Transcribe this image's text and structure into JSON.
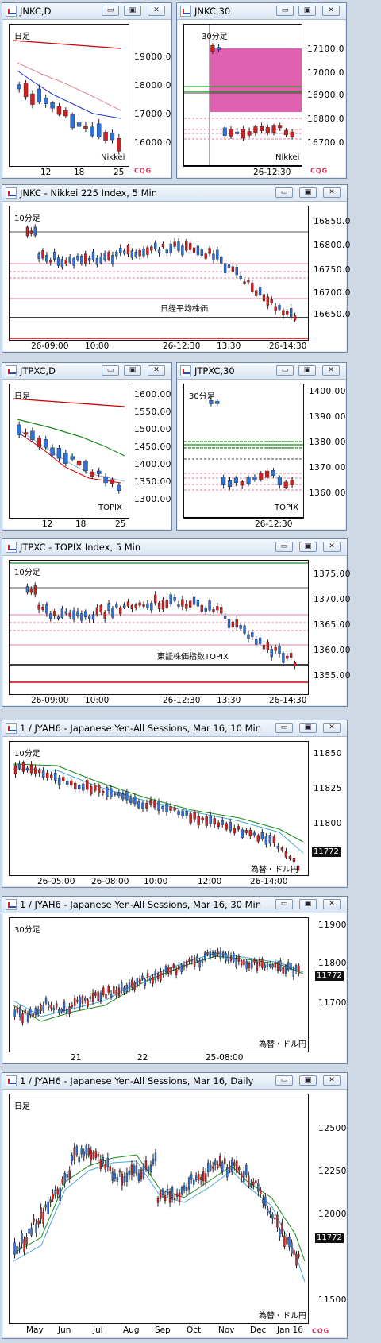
{
  "windows": [
    {
      "id": "w1",
      "title": "JNKC,D",
      "label": "日足",
      "label_color": "#1020c0",
      "tag": "Nikkei",
      "tag_color": "#1020c0",
      "yticks": [
        "19000.0",
        "18000.0",
        "17000.0",
        "16000.0"
      ],
      "xticks": [
        "12",
        "18",
        "25"
      ],
      "logo": "CQG"
    },
    {
      "id": "w2",
      "title": "JNKC,30",
      "label": "30分足",
      "label_color": "#1020c0",
      "tag": "Nikkei",
      "tag_color": "#1020c0",
      "yticks": [
        "17100.0",
        "17000.0",
        "16900.0",
        "16800.0",
        "16700.0"
      ],
      "xticks": [
        "26-12:30"
      ],
      "logo": "CQG"
    },
    {
      "id": "w3",
      "title": "JNKC - Nikkei 225 Index, 5 Min",
      "label": "10分足",
      "label_color": "#1020c0",
      "tag": "日経平均株価",
      "tag_color": "#1020c0",
      "yticks": [
        "16850.0",
        "16800.0",
        "16750.0",
        "16700.0",
        "16650.0"
      ],
      "xticks": [
        "26-09:00",
        "10:00",
        "26-12:30",
        "13:30",
        "26-14:30"
      ]
    },
    {
      "id": "w4",
      "title": "JTPXC,D",
      "label": "日足",
      "label_color": "#d01010",
      "tag": "TOPIX",
      "tag_color": "#d01010",
      "yticks": [
        "1600.00",
        "1550.00",
        "1500.00",
        "1450.00",
        "1400.00",
        "1350.00",
        "1300.00"
      ],
      "xticks": [
        "12",
        "18",
        "25"
      ]
    },
    {
      "id": "w5",
      "title": "JTPXC,30",
      "label": "30分足",
      "label_color": "#d01010",
      "tag": "TOPIX",
      "tag_color": "#d01010",
      "yticks": [
        "1400.00",
        "1390.00",
        "1380.00",
        "1370.00",
        "1360.00"
      ],
      "xticks": [
        "26-12:30"
      ]
    },
    {
      "id": "w6",
      "title": "JTPXC - TOPIX Index, 5 Min",
      "label": "10分足",
      "label_color": "#d01010",
      "tag": "東証株価指数TOPIX",
      "tag_color": "#d01010",
      "yticks": [
        "1375.00",
        "1370.00",
        "1365.00",
        "1360.00",
        "1355.00"
      ],
      "xticks": [
        "26-09:00",
        "10:00",
        "26-12:30",
        "13:30",
        "26-14:30"
      ]
    },
    {
      "id": "w7",
      "title": "1 / JYAH6 - Japanese Yen-All Sessions, Mar 16, 10 Min",
      "label": "10分足",
      "label_color": "#108010",
      "tag": "為替・ドル円",
      "tag_color": "#108010",
      "yticks": [
        "11850",
        "11825",
        "11800",
        "11772"
      ],
      "xticks": [
        "26-05:00",
        "26-08:00",
        "10:00",
        "12:00",
        "26-14:00"
      ],
      "price": "11772"
    },
    {
      "id": "w8",
      "title": "1 / JYAH6 - Japanese Yen-All Sessions, Mar 16, 30 Min",
      "label": "30分足",
      "label_color": "#108010",
      "tag": "為替・ドル円",
      "tag_color": "#108010",
      "yticks": [
        "11900",
        "11800",
        "11700"
      ],
      "xticks": [
        "21",
        "22",
        "25-08:00"
      ],
      "price": "11772"
    },
    {
      "id": "w9",
      "title": "1 / JYAH6 - Japanese Yen-All Sessions, Mar 16, Daily",
      "label": "日足",
      "label_color": "#108010",
      "tag": "為替・ドル円",
      "tag_color": "#108010",
      "yticks": [
        "12500",
        "12250",
        "12000",
        "11750",
        "11500"
      ],
      "xticks": [
        "May",
        "Jun",
        "Jul",
        "Aug",
        "Sep",
        "Oct",
        "Nov",
        "Dec",
        "Jan 16"
      ],
      "price": "11772",
      "logo": "CQG"
    }
  ],
  "buttons": {
    "minimize": "▭",
    "restore": "▣",
    "close": "✕"
  }
}
